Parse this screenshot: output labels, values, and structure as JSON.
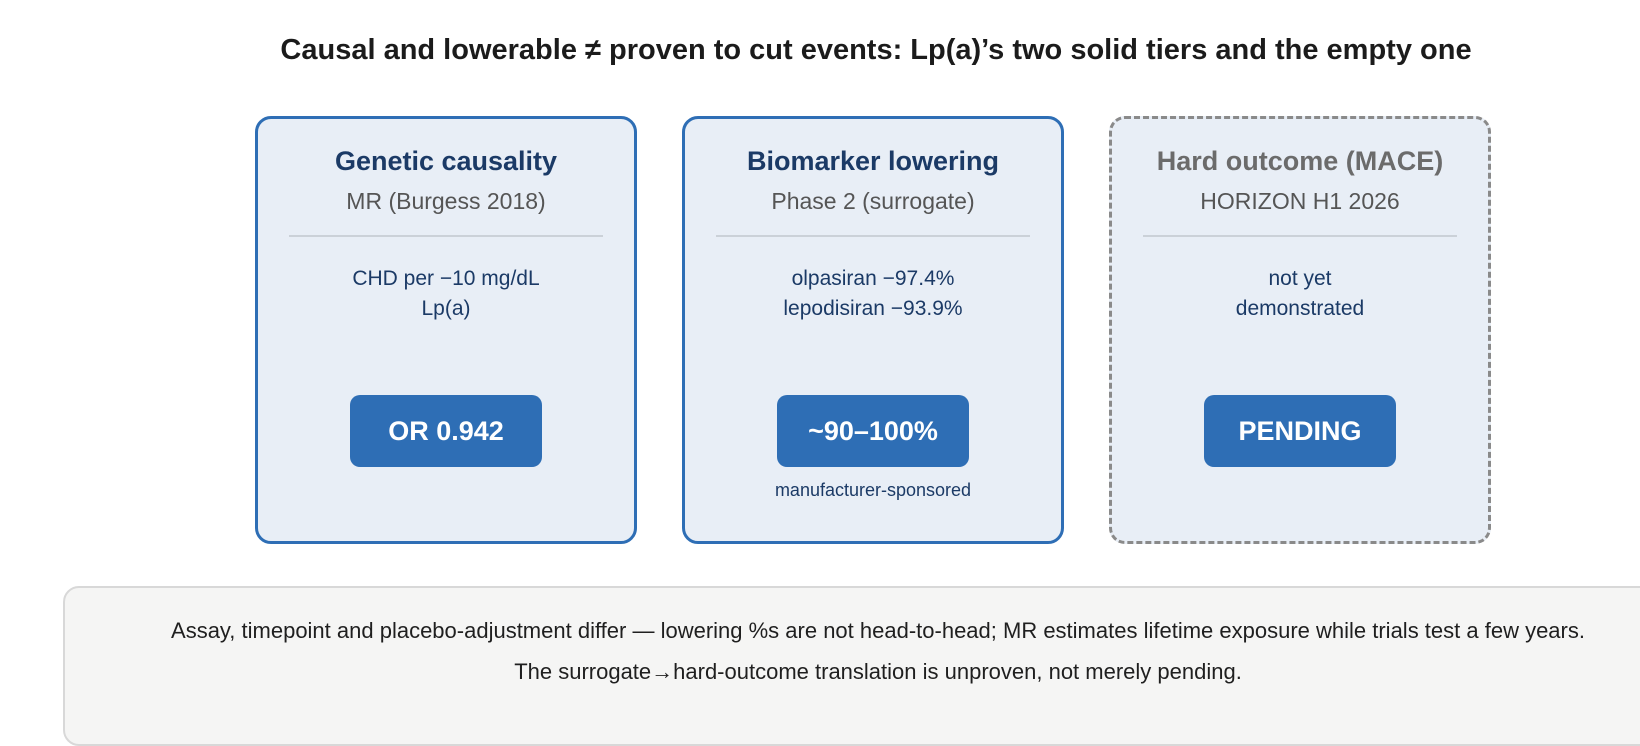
{
  "title": "Causal and lowerable ≠ proven to cut events: Lp(a)’s two solid tiers and the empty one",
  "cards": [
    {
      "title": "Genetic causality",
      "subtitle": "MR (Burgess 2018)",
      "body": [
        "CHD per −10 mg/dL",
        "Lp(a)"
      ],
      "badge": "OR 0.942",
      "note": ""
    },
    {
      "title": "Biomarker lowering",
      "subtitle": "Phase 2 (surrogate)",
      "body": [
        "olpasiran −97.4%",
        "lepodisiran −93.9%"
      ],
      "badge": "~90–100%",
      "note": "manufacturer-sponsored"
    },
    {
      "title": "Hard outcome (MACE)",
      "subtitle": "HORIZON H1 2026",
      "body": [
        "not yet",
        "demonstrated"
      ],
      "badge": "PENDING",
      "note": ""
    }
  ],
  "footnote": {
    "line1": "Assay, timepoint and placebo-adjustment differ — lowering %s are not head-to-head; MR estimates lifetime exposure while trials test a few years.",
    "line2": "The surrogate→hard-outcome translation is unproven, not merely pending."
  },
  "colors": {
    "card_border": "#2e6eb5",
    "card_fill": "#e8eef6",
    "badge_fill": "#2e6eb5",
    "pending_border": "#8a8a8a",
    "title_text": "#1b3a66"
  }
}
